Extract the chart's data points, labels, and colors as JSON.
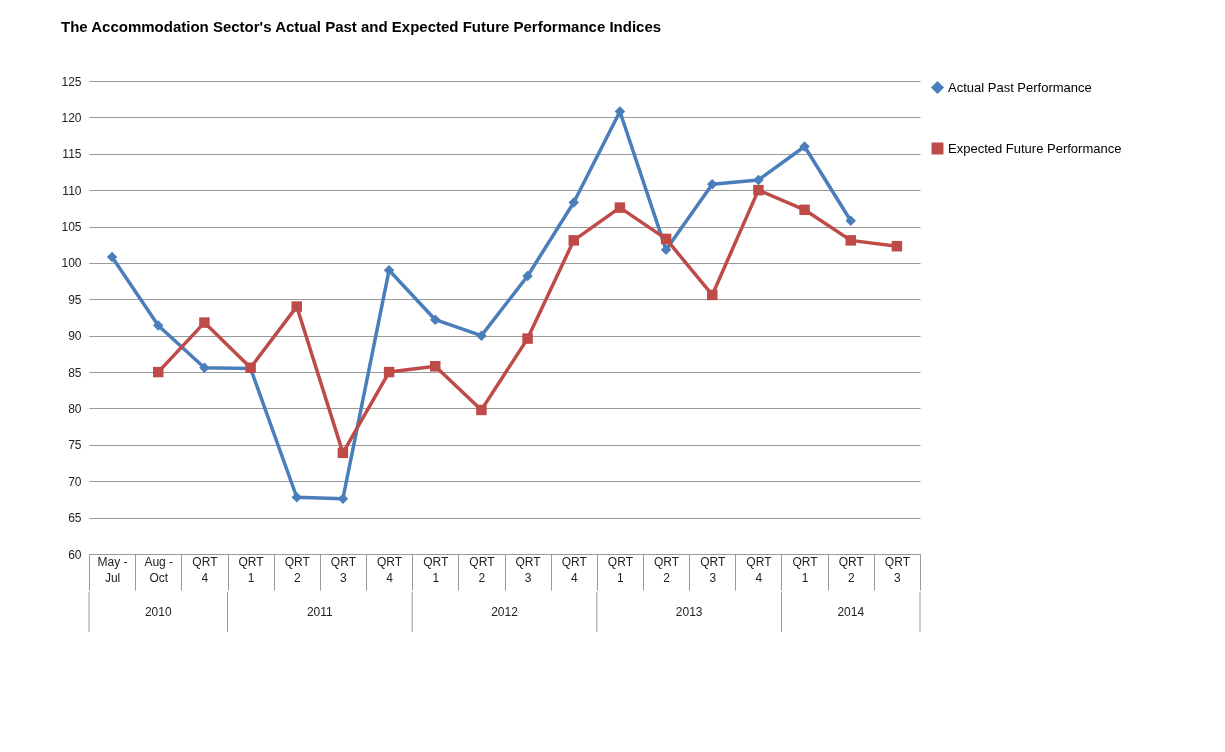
{
  "chart_data": {
    "type": "line",
    "title": "The Accommodation Sector's Actual Past and Expected Future Performance Indices",
    "categories": [
      "May - Jul",
      "Aug - Oct",
      "QRT 4",
      "QRT 1",
      "QRT 2",
      "QRT 3",
      "QRT 4",
      "QRT 1",
      "QRT 2",
      "QRT 3",
      "QRT 4",
      "QRT 1",
      "QRT 2",
      "QRT 3",
      "QRT 4",
      "QRT 1",
      "QRT 2",
      "QRT 3"
    ],
    "series": [
      {
        "name": "Actual Past Performance",
        "color": "#4a7ebb",
        "marker": "diamond",
        "values": [
          100.8,
          91.4,
          85.6,
          85.5,
          67.8,
          67.6,
          99,
          92.2,
          90,
          98.2,
          108.3,
          120.8,
          101.8,
          110.8,
          111.4,
          116,
          105.8,
          null
        ]
      },
      {
        "name": "Expected Future Performance",
        "color": "#be4b48",
        "marker": "square",
        "values": [
          null,
          85,
          91.8,
          85.6,
          94,
          73.9,
          85,
          85.8,
          79.8,
          89.6,
          103.1,
          107.6,
          103.3,
          95.6,
          110,
          107.3,
          103.1,
          102.3
        ]
      }
    ],
    "annotations": [
      "2010",
      "2011",
      "2012",
      "2013",
      "2014"
    ],
    "ylim": [
      60,
      125
    ],
    "yticks": [
      60,
      65,
      70,
      75,
      80,
      85,
      90,
      95,
      100,
      105,
      110,
      115,
      120,
      125
    ],
    "grid": "y",
    "legend": "right"
  }
}
